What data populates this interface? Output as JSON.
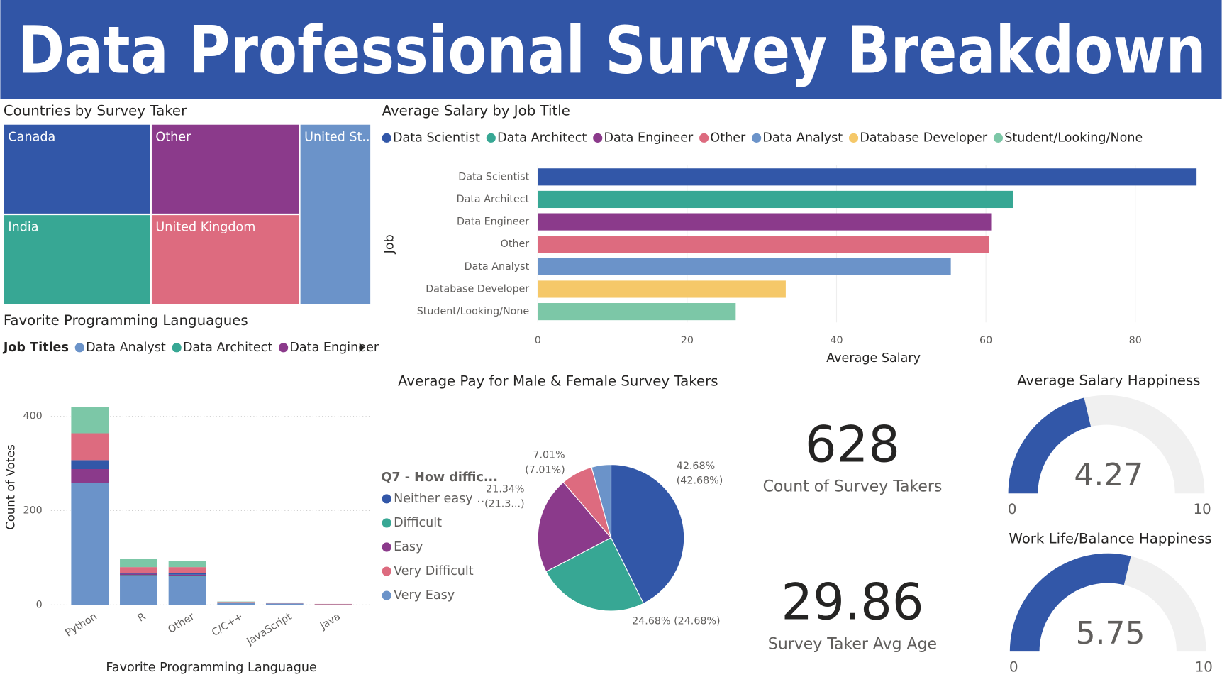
{
  "title": "Data Professional Survey Breakdown",
  "chart_data": [
    {
      "type": "treemap",
      "title": "Countries by Survey Taker",
      "categories": [
        "Canada",
        "Other",
        "India",
        "United Kingdom",
        "United St..."
      ],
      "values": [
        126,
        127,
        126,
        127,
        122
      ],
      "colors": [
        "#3257A8",
        "#8B3A8B",
        "#37A794",
        "#DD6B7F",
        "#6B93C9"
      ]
    },
    {
      "type": "hbar",
      "title": "Average Salary by Job Title",
      "categories": [
        "Data Scientist",
        "Data Architect",
        "Data Engineer",
        "Other",
        "Data Analyst",
        "Database Developer",
        "Student/Looking/None"
      ],
      "values": [
        88.2,
        63.6,
        60.7,
        60.4,
        55.3,
        33.2,
        26.5
      ],
      "colors": [
        "#3257A8",
        "#37A794",
        "#8B3A8B",
        "#DD6B7F",
        "#6B93C9",
        "#F5C869",
        "#7CC7A7"
      ],
      "xlim": [
        0,
        90
      ],
      "xticks": [
        0,
        20,
        40,
        60,
        80
      ],
      "xlabel": "Average Salary",
      "ylabel": "Job",
      "grid": true,
      "legend": true
    },
    {
      "type": "stackedbar",
      "title": "Favorite Programming Languagues",
      "legend_title": "Job Titles",
      "categories": [
        "Python",
        "R",
        "Other",
        "C/C++",
        "JavaScript",
        "Java"
      ],
      "series": [
        {
          "name": "Data Analyst",
          "color": "#6B93C9",
          "values": [
            258,
            62,
            60,
            4,
            3,
            1
          ]
        },
        {
          "name": "Data Architect",
          "color": "#37A794",
          "values": [
            0,
            1,
            1,
            0,
            0,
            0
          ]
        },
        {
          "name": "Data Engineer",
          "color": "#8B3A8B",
          "values": [
            30,
            3,
            3,
            1,
            0,
            0
          ]
        },
        {
          "color": "#3257A8",
          "values": [
            19,
            2,
            3,
            0,
            0,
            0
          ]
        },
        {
          "color": "#DD6B7F",
          "values": [
            57,
            12,
            13,
            1,
            1,
            1
          ]
        },
        {
          "color": "#7CC7A7",
          "values": [
            56,
            18,
            13,
            1,
            1,
            0
          ]
        }
      ],
      "ylim": [
        0,
        425
      ],
      "yticks": [
        0,
        200,
        400
      ],
      "ylabel": "Count of Votes",
      "xlabel": "Favorite Programming Languague",
      "grid": true
    },
    {
      "type": "pie",
      "title": "Average Pay for Male & Female Survey Takers",
      "legend_title": "Q7 - How diffic...",
      "categories": [
        "Neither easy ...",
        "Difficult",
        "Easy",
        "Very Difficult",
        "Very Easy"
      ],
      "values": [
        42.68,
        24.68,
        21.34,
        7.01,
        4.29
      ],
      "value_labels": [
        [
          "42.68%",
          "(42.68%)"
        ],
        [
          "24.68% (24.68%)"
        ],
        [
          "21.34%",
          "(21.3...)"
        ],
        [
          "7.01%",
          "(7.01%)"
        ],
        null
      ],
      "colors": [
        "#3257A8",
        "#37A794",
        "#8B3A8B",
        "#DD6B7F",
        "#6B93C9"
      ]
    },
    {
      "type": "card",
      "value": 628,
      "label": "Count of Survey Takers"
    },
    {
      "type": "card",
      "value": 29.86,
      "label": "Survey Taker Avg Age"
    },
    {
      "type": "gauge",
      "title": "Average Salary Happiness",
      "value": 4.27,
      "ylim": [
        0,
        10
      ],
      "color": "#3257A8"
    },
    {
      "type": "gauge",
      "title": "Work Life/Balance Happiness",
      "value": 5.75,
      "ylim": [
        0,
        10
      ],
      "color": "#3257A8"
    }
  ]
}
